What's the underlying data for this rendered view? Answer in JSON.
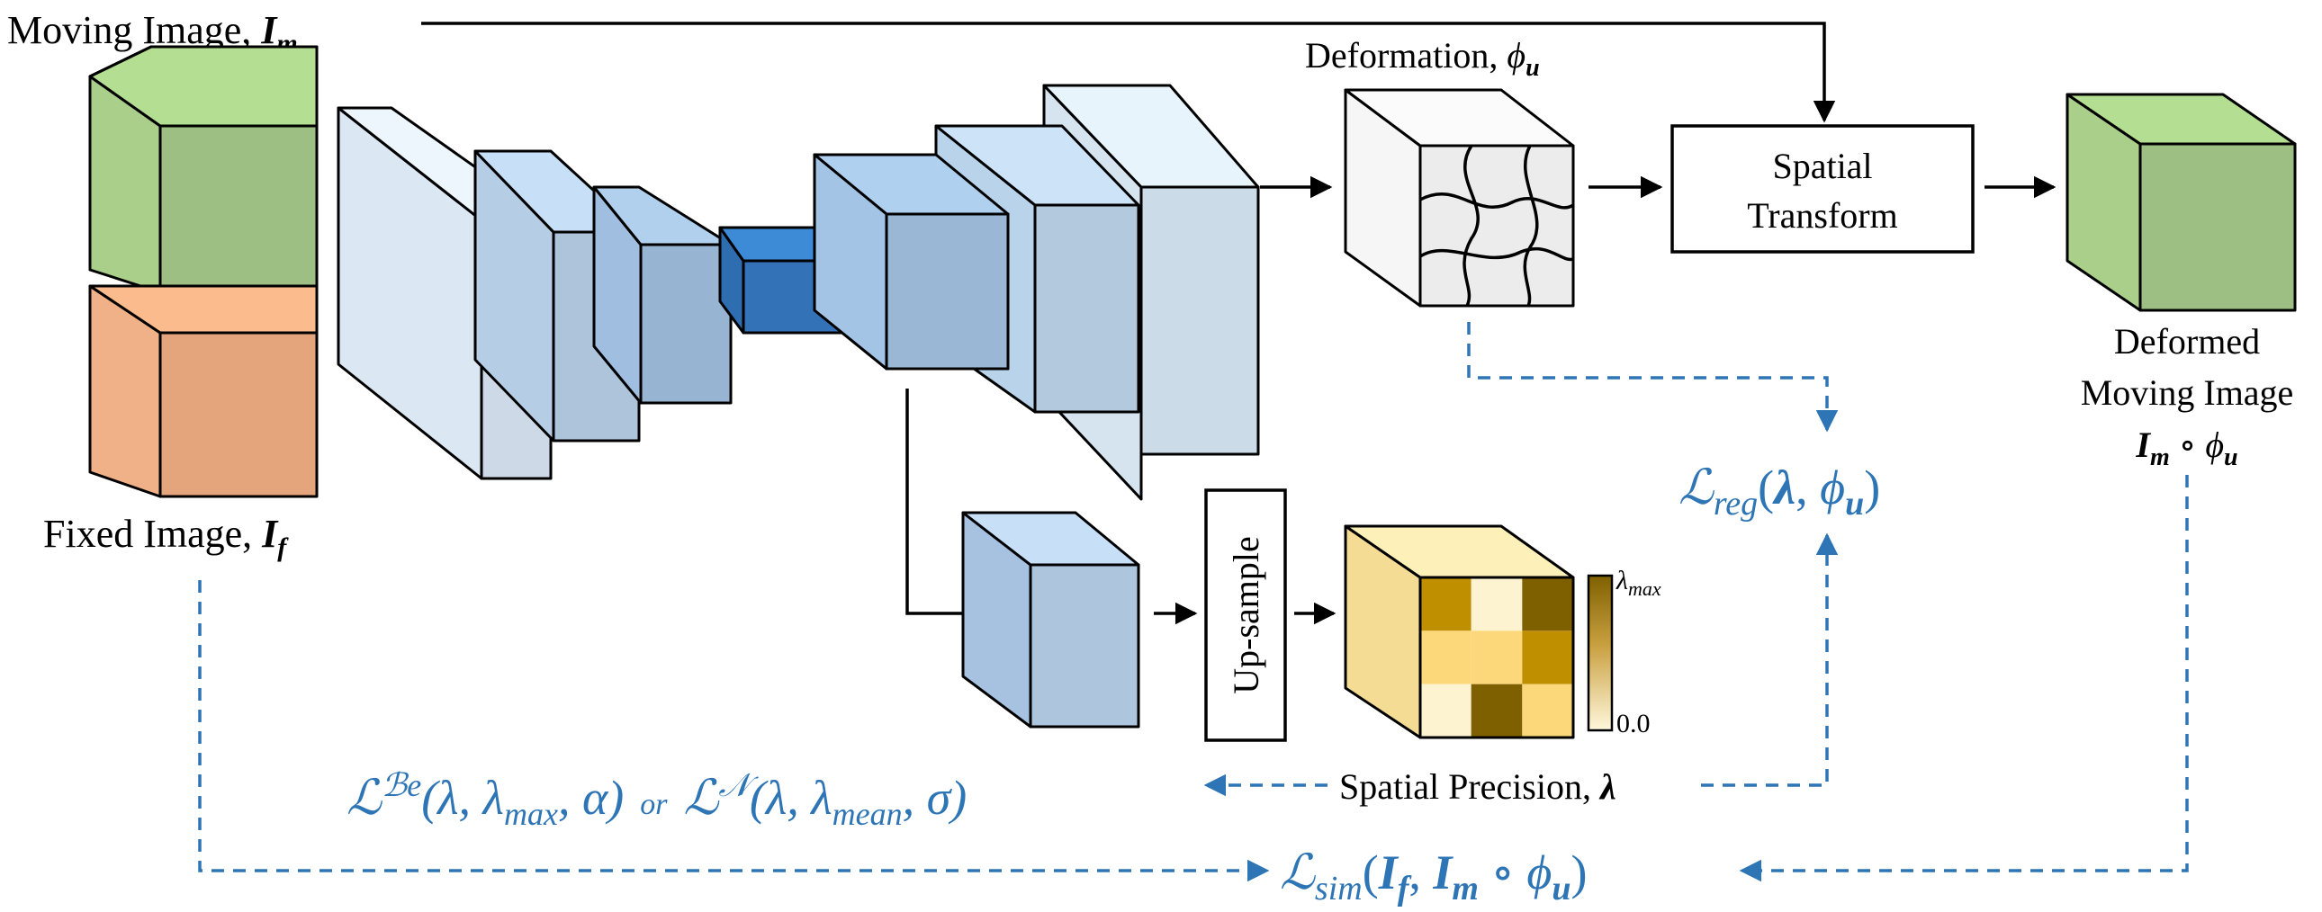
{
  "labels": {
    "moving_image": "Moving Image, ",
    "moving_image_sym": "I",
    "moving_image_sub": "m",
    "fixed_image": "Fixed Image, ",
    "fixed_image_sym": "I",
    "fixed_image_sub": "f",
    "deformation": "Deformation, ",
    "deformation_sym": "ϕ",
    "deformation_sub": "u",
    "spatial_transform_line1": "Spatial",
    "spatial_transform_line2": "Transform",
    "deformed_line1": "Deformed",
    "deformed_line2": "Moving Image",
    "deformed_expr_I": "I",
    "deformed_expr_m": "m",
    "deformed_expr_op": " ∘ ",
    "deformed_expr_phi": "ϕ",
    "deformed_expr_u": "u",
    "upsample": "Up-sample",
    "spatial_precision": "Spatial Precision, ",
    "spatial_precision_sym": "λ",
    "colorbar_max": "λ",
    "colorbar_max_sub": "max",
    "colorbar_min": "0.0"
  },
  "losses": {
    "reg_L": "ℒ",
    "reg_sub": "reg",
    "reg_args_open": "(",
    "reg_lambda": "λ",
    "reg_comma": ", ",
    "reg_phi": "ϕ",
    "reg_phi_sub": "u",
    "reg_close": ")",
    "be_L": "ℒ",
    "be_sup": "ℬe",
    "be_args": "(λ, λ",
    "be_args_sub": "max",
    "be_args_end": ", α)",
    "or": "or",
    "n_L": "ℒ",
    "n_sup": "𝒩",
    "n_args": "(λ, λ",
    "n_args_sub": "mean",
    "n_args_end": ", σ)",
    "sim_L": "ℒ",
    "sim_sub": "sim",
    "sim_open": "(",
    "sim_If": "I",
    "sim_If_sub": "f",
    "sim_comma": ", ",
    "sim_Im": "I",
    "sim_Im_sub": "m",
    "sim_op": " ∘ ",
    "sim_phi": "ϕ",
    "sim_phi_sub": "u",
    "sim_close": ")"
  },
  "colors": {
    "accent_blue": "#2e75b6",
    "moving_front": "#a3c586",
    "moving_top": "#b4df92",
    "moving_side": "#9dbf83",
    "fixed_front": "#f0b088",
    "fixed_top": "#fcbb8c",
    "fixed_side": "#e4a57c",
    "precision_light": "#fdf3d0",
    "precision_mid": "#fcd87a",
    "precision_dark": "#bf8f00",
    "precision_darkest": "#7f6000"
  },
  "precision_grid": [
    [
      "#bf8f00",
      "#fdf3d0",
      "#7f6000"
    ],
    [
      "#fcd87a",
      "#fcd87a",
      "#bf8f00"
    ],
    [
      "#fdf3d0",
      "#7f6000",
      "#fcd87a"
    ]
  ]
}
